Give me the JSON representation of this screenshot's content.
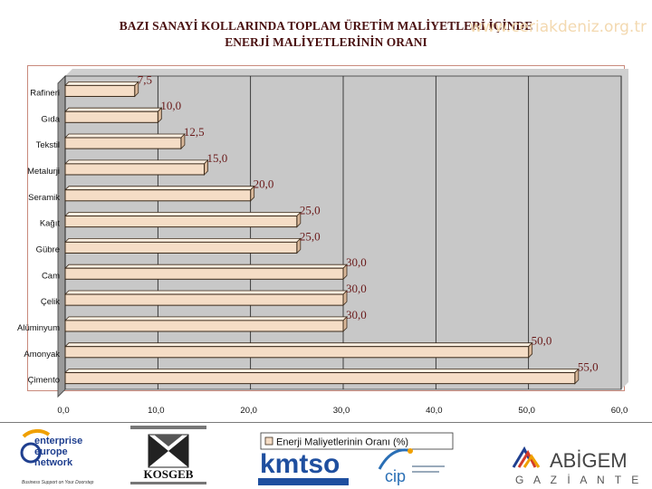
{
  "title_line1": "BAZI SANAYİ KOLLARINDA TOPLAM ÜRETİM MALİYETLERİ İÇİNDE",
  "title_line2": "ENERJİ MALİYETLERİNİN ORANI",
  "watermark": "www.ceriakdeniz.org.tr",
  "colors": {
    "bar_fill": "#f5ddc6",
    "bar_border": "#3a2a1a",
    "plot_bg": "#c8c8c8",
    "label_color": "#6a1a1a",
    "title_color": "#4a1010"
  },
  "chart_data": {
    "type": "bar",
    "orientation": "horizontal",
    "categories": [
      "Rafineri",
      "Gıda",
      "Tekstil",
      "Metalurji",
      "Seramik",
      "Kağıt",
      "Gübre",
      "Cam",
      "Çelik",
      "Alüminyum",
      "Amonyak",
      "Çimento"
    ],
    "series": [
      {
        "name": "Enerji Maliyetlerinin Oranı (%)",
        "values": [
          7.5,
          10.0,
          12.5,
          15.0,
          20.0,
          25.0,
          25.0,
          30.0,
          30.0,
          30.0,
          50.0,
          55.0
        ]
      }
    ],
    "value_labels": [
      "7,5",
      "10,0",
      "12,5",
      "15,0",
      "20,0",
      "25,0",
      "25,0",
      "30,0",
      "30,0",
      "30,0",
      "50,0",
      "55,0"
    ],
    "x_ticks": [
      0,
      10,
      20,
      30,
      40,
      50,
      60
    ],
    "x_tick_labels": [
      "0,0",
      "10,0",
      "20,0",
      "30,0",
      "40,0",
      "50,0",
      "60,0"
    ],
    "xlim": [
      0,
      60
    ],
    "grid": "vertical",
    "legend_position": "bottom-center",
    "legend_label": "Enerji Maliyetlerinin Oranı (%)",
    "title": "",
    "xlabel": "",
    "ylabel": ""
  },
  "logos": {
    "een_text": [
      "enterprise",
      "europe",
      "network"
    ],
    "een_tagline": "Business Support on Your Doorstep",
    "kosgeb_text": "KOSGEB",
    "kmtso_text": "kmtso",
    "cip_text": "cip",
    "abigem_text": "ABİGEM",
    "abigem_sub": "G A Z İ A N T E P"
  }
}
